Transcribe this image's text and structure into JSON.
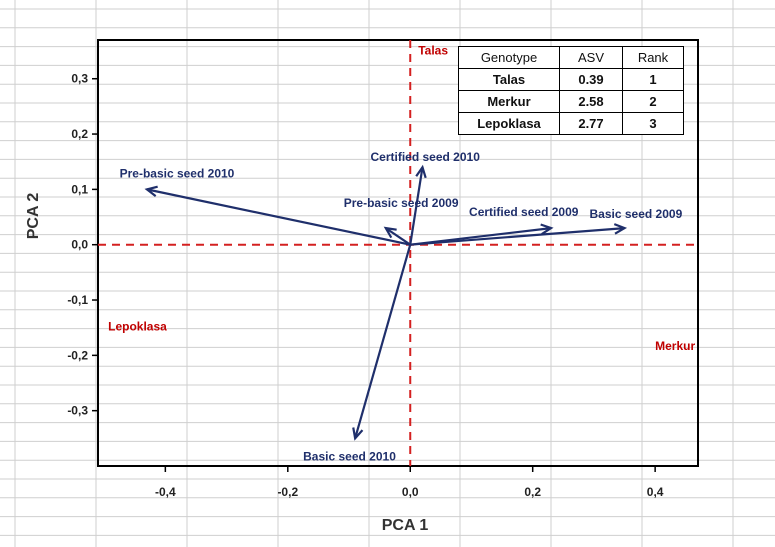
{
  "chart_data": {
    "type": "scatter",
    "xlabel": "PCA 1",
    "ylabel": "PCA 2",
    "xlim": [
      -0.51,
      0.47
    ],
    "ylim": [
      -0.4,
      0.37
    ],
    "x_ticks": [
      "-0,4",
      "-0,2",
      "0,0",
      "0,2",
      "0,4"
    ],
    "x_tick_values": [
      -0.4,
      -0.2,
      0.0,
      0.2,
      0.4
    ],
    "y_ticks": [
      "0,3",
      "0,2",
      "0,1",
      "0,0",
      "-0,1",
      "-0,2",
      "-0,3"
    ],
    "y_tick_values": [
      0.3,
      0.2,
      0.1,
      0.0,
      -0.1,
      -0.2,
      -0.3
    ],
    "grid": true,
    "vectors": [
      {
        "label": "Pre-basic seed 2010",
        "x": -0.43,
        "y": 0.1
      },
      {
        "label": "Pre-basic seed 2009",
        "x": -0.04,
        "y": 0.03
      },
      {
        "label": "Certified seed 2010",
        "x": 0.02,
        "y": 0.14
      },
      {
        "label": "Certified seed 2009",
        "x": 0.23,
        "y": 0.03
      },
      {
        "label": "Basic seed 2009",
        "x": 0.35,
        "y": 0.03
      },
      {
        "label": "Basic seed 2010",
        "x": -0.09,
        "y": -0.35
      }
    ],
    "genotypes": [
      {
        "label": "Talas",
        "x": 0.0,
        "y": 0.34
      },
      {
        "label": "Lepoklasa",
        "x": -0.5,
        "y": -0.155
      },
      {
        "label": "Merkur",
        "x": 0.4,
        "y": -0.19
      }
    ],
    "colors": {
      "vector": "#1f2f6b",
      "genotype": "#c00000",
      "reference_line": "#d42020",
      "grid": "#cfcfcf"
    }
  },
  "table": {
    "headers": [
      "Genotype",
      "ASV",
      "Rank"
    ],
    "rows": [
      [
        "Talas",
        "0.39",
        "1"
      ],
      [
        "Merkur",
        "2.58",
        "2"
      ],
      [
        "Lepoklasa",
        "2.77",
        "3"
      ]
    ]
  }
}
